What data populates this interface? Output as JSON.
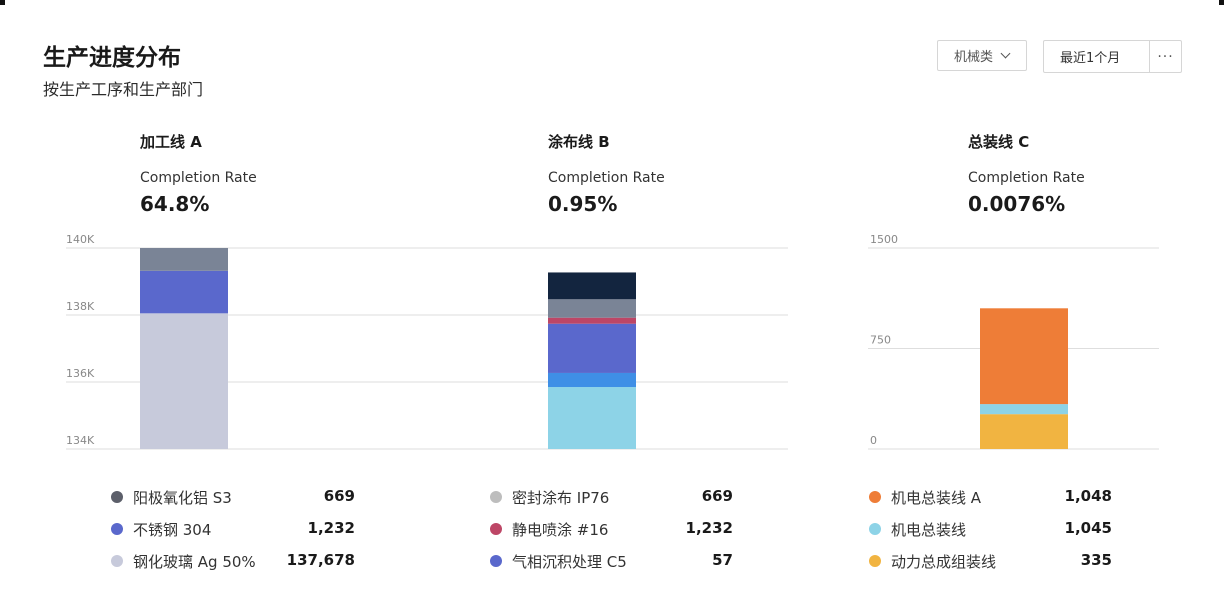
{
  "header": {
    "title": "生产进度分布",
    "subtitle": "按生产工序和生产部门"
  },
  "controls": {
    "category_filter": "机械类",
    "time_range": "最近1个月",
    "more_label": "···"
  },
  "panels": [
    {
      "title": "加工线 A",
      "rate_label": "Completion Rate",
      "rate": "64.8%"
    },
    {
      "title": "涂布线 B",
      "rate_label": "Completion Rate",
      "rate": "0.95%"
    },
    {
      "title": "总装线 C",
      "rate_label": "Completion Rate",
      "rate": "0.0076%"
    }
  ],
  "chart_data": [
    {
      "type": "bar",
      "stacked": true,
      "ylim": [
        134000,
        140000
      ],
      "yticks": [
        134000,
        136000,
        138000,
        140000
      ],
      "ytick_labels": [
        "134K",
        "136K",
        "138K",
        "140K"
      ],
      "grid": true,
      "segments": [
        {
          "name": "钢化玻璃 Ag 50%",
          "start": 134000,
          "end": 138050,
          "color": "#c7cadb"
        },
        {
          "name": "不锈钢 304",
          "start": 138050,
          "end": 139320,
          "color": "#5a68cc"
        },
        {
          "name": "阳极氧化铝 S3",
          "start": 139320,
          "end": 140000,
          "color": "#7a8496"
        }
      ],
      "legend": [
        {
          "label": "阳极氧化铝 S3",
          "value": "669",
          "color": "#5c5f6a"
        },
        {
          "label": "不锈钢 304",
          "value": "1,232",
          "color": "#5a68cc"
        },
        {
          "label": "钢化玻璃 Ag 50%",
          "value": "137,678",
          "color": "#c7cadb"
        }
      ]
    },
    {
      "type": "bar",
      "stacked": true,
      "ylim": [
        134000,
        140000
      ],
      "yticks": [
        134000,
        136000,
        138000,
        140000
      ],
      "ytick_labels": [
        "134K",
        "136K",
        "138K",
        "140K"
      ],
      "grid": true,
      "segments": [
        {
          "name": "",
          "start": 134000,
          "end": 135850,
          "color": "#8dd3e7"
        },
        {
          "name": "",
          "start": 135850,
          "end": 136270,
          "color": "#3f8fe6"
        },
        {
          "name": "气相沉积处理 C5",
          "start": 136270,
          "end": 137740,
          "color": "#5a68cc"
        },
        {
          "name": "静电喷涂 #16",
          "start": 137740,
          "end": 137920,
          "color": "#bd4666"
        },
        {
          "name": "密封涂布 IP76",
          "start": 137920,
          "end": 138470,
          "color": "#7a8496"
        },
        {
          "name": "",
          "start": 138470,
          "end": 139270,
          "color": "#13253f"
        }
      ],
      "legend": [
        {
          "label": "密封涂布 IP76",
          "value": "669",
          "color": "#bdbdbd"
        },
        {
          "label": "静电喷涂 #16",
          "value": "1,232",
          "color": "#bd4666"
        },
        {
          "label": "气相沉积处理 C5",
          "value": "57",
          "color": "#5a68cc"
        }
      ]
    },
    {
      "type": "bar",
      "stacked": true,
      "ylim": [
        0,
        1500
      ],
      "yticks": [
        0,
        750,
        1500
      ],
      "ytick_labels": [
        "0",
        "750",
        "1500"
      ],
      "grid": true,
      "segments": [
        {
          "name": "动力总成组装线",
          "start": 0,
          "end": 260,
          "color": "#f1b441"
        },
        {
          "name": "机电总装线",
          "start": 260,
          "end": 335,
          "color": "#8dd3e7"
        },
        {
          "name": "机电总装线 A",
          "start": 335,
          "end": 1050,
          "color": "#ee7d37"
        }
      ],
      "legend": [
        {
          "label": "机电总装线 A",
          "value": "1,048",
          "color": "#ee7d37"
        },
        {
          "label": "机电总装线",
          "value": "1,045",
          "color": "#8dd3e7"
        },
        {
          "label": "动力总成组装线",
          "value": "335",
          "color": "#f1b441"
        }
      ]
    }
  ]
}
